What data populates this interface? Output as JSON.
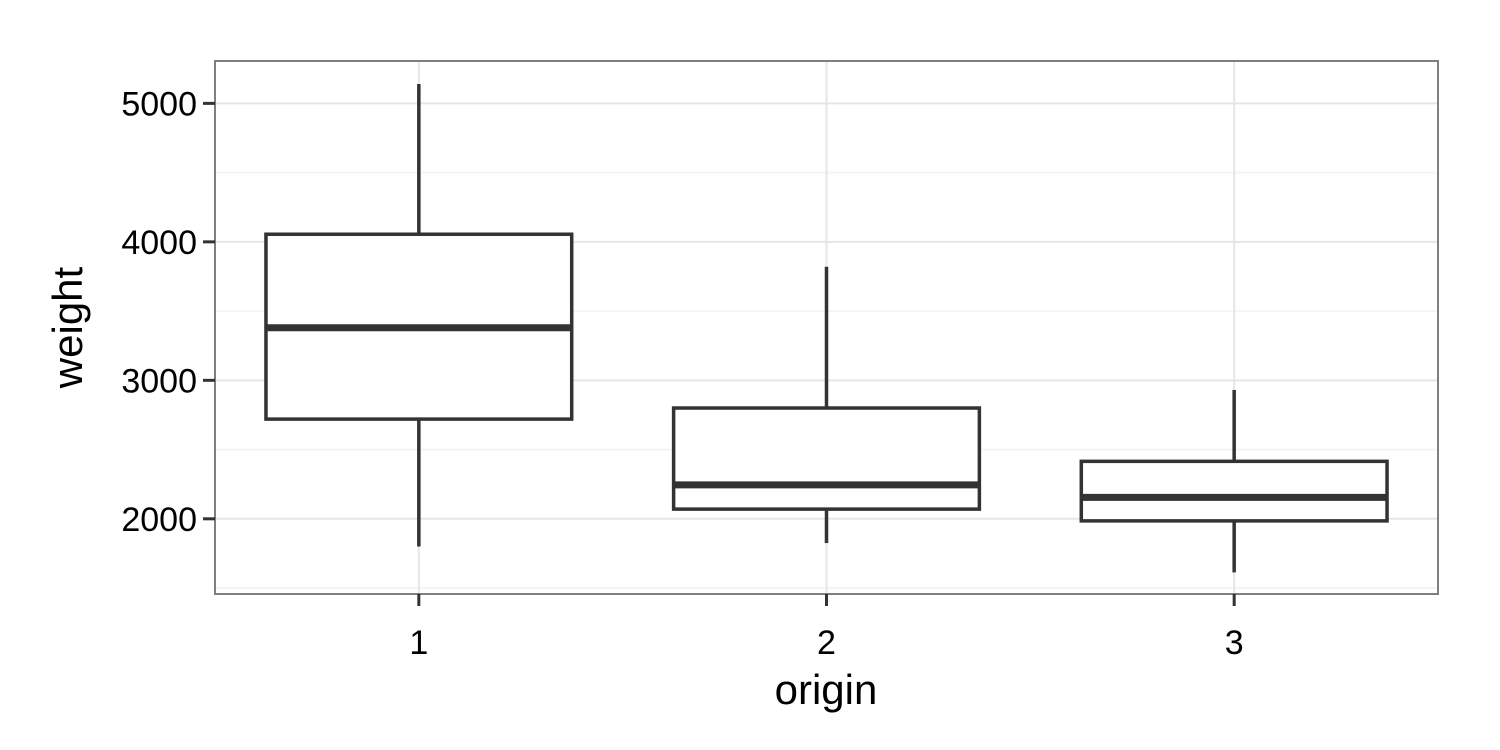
{
  "chart_data": {
    "type": "boxplot",
    "xlabel": "origin",
    "ylabel": "weight",
    "categories": [
      "1",
      "2",
      "3"
    ],
    "boxes": [
      {
        "category": "1",
        "whisker_low": 1800,
        "q1": 2720,
        "median": 3380,
        "q3": 4055,
        "whisker_high": 5140
      },
      {
        "category": "2",
        "whisker_low": 1825,
        "q1": 2070,
        "median": 2245,
        "q3": 2800,
        "whisker_high": 3820
      },
      {
        "category": "3",
        "whisker_low": 1613,
        "q1": 1985,
        "median": 2155,
        "q3": 2415,
        "whisker_high": 2930
      }
    ],
    "y_ticks": [
      2000,
      3000,
      4000,
      5000
    ],
    "ylim": [
      1457,
      5306
    ],
    "grid": true,
    "legend": "none",
    "colors": {
      "panel_background": "#ffffff",
      "panel_border": "#7f7f7f",
      "grid_major": "#e6e6e6",
      "grid_minor": "#f5f5f5",
      "box_line": "#333333",
      "axis_tick": "#333333"
    }
  }
}
